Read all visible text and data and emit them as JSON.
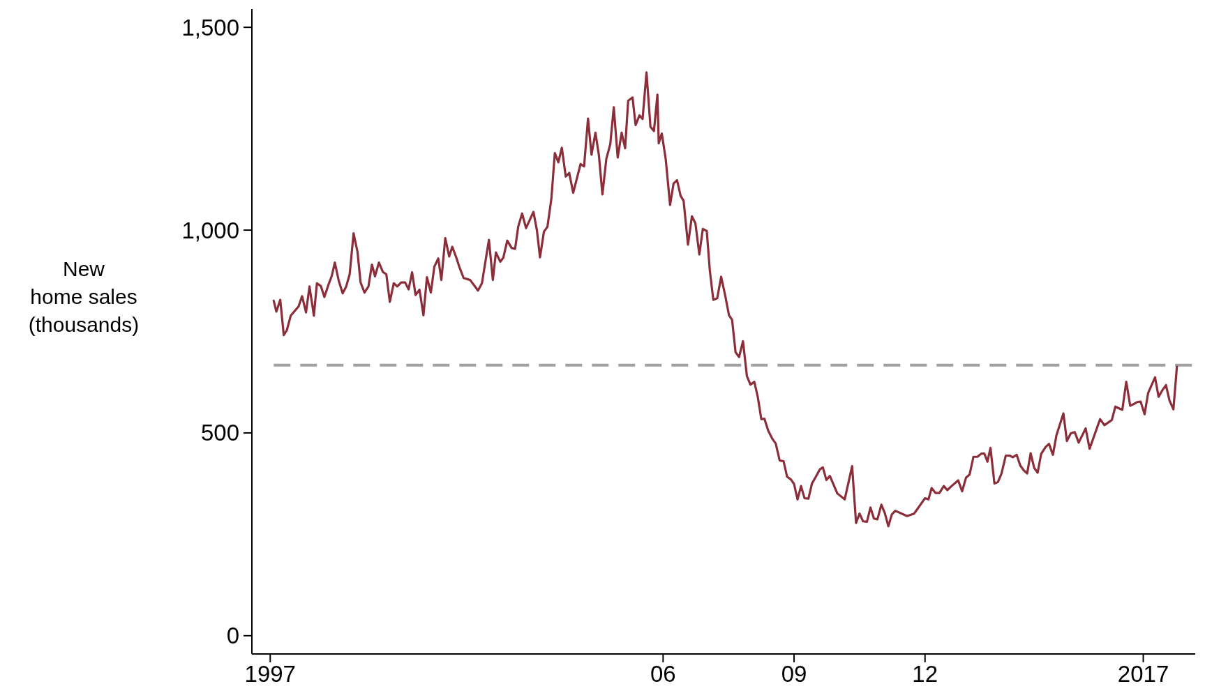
{
  "chart_data": {
    "type": "line",
    "ylabel": "New\nhome sales\n(thousands)",
    "xlim": [
      1996.58,
      2018.19
    ],
    "ylim": [
      -45,
      1545
    ],
    "xticks": [
      {
        "value": 1997,
        "label": "1997"
      },
      {
        "value": 2006,
        "label": "06"
      },
      {
        "value": 2009,
        "label": "09"
      },
      {
        "value": 2012,
        "label": "12"
      },
      {
        "value": 2017,
        "label": "2017"
      }
    ],
    "yticks": [
      0,
      {
        "value": 500,
        "label": "500"
      },
      {
        "value": 1000,
        "label": "1,000"
      },
      {
        "value": 1500,
        "label": "1,500"
      }
    ],
    "grid": false,
    "marker": "none",
    "line_style": "solid",
    "ref_lines": [
      {
        "axis": "y",
        "value": 667,
        "label": null,
        "color": "#a0a0a0",
        "line_style": "dashed"
      }
    ],
    "series": [
      {
        "color": "#8b2e3a",
        "x": [
          1997.08,
          1997.14,
          1997.23,
          1997.31,
          1997.38,
          1997.47,
          1997.65,
          1997.73,
          1997.82,
          1997.9,
          1998.0,
          1998.07,
          1998.16,
          1998.24,
          1998.33,
          1998.41,
          1998.48,
          1998.57,
          1998.66,
          1998.74,
          1998.82,
          1998.91,
          1999.0,
          1999.07,
          1999.16,
          1999.25,
          1999.33,
          1999.4,
          1999.49,
          1999.58,
          1999.66,
          1999.74,
          1999.83,
          1999.91,
          2000.0,
          2000.09,
          2000.17,
          2000.25,
          2000.33,
          2000.42,
          2000.51,
          2000.59,
          2000.68,
          2000.76,
          2000.85,
          2000.92,
          2001.01,
          2001.1,
          2001.17,
          2001.26,
          2001.34,
          2001.43,
          2001.58,
          2001.76,
          2001.85,
          2002.01,
          2002.1,
          2002.17,
          2002.27,
          2002.34,
          2002.43,
          2002.53,
          2002.61,
          2002.68,
          2002.77,
          2002.86,
          2003.03,
          2003.11,
          2003.18,
          2003.27,
          2003.35,
          2003.44,
          2003.52,
          2003.6,
          2003.68,
          2003.77,
          2003.85,
          2003.94,
          2004.11,
          2004.19,
          2004.28,
          2004.36,
          2004.45,
          2004.53,
          2004.61,
          2004.7,
          2004.79,
          2004.87,
          2004.96,
          2005.05,
          2005.13,
          2005.2,
          2005.3,
          2005.37,
          2005.46,
          2005.53,
          2005.62,
          2005.71,
          2005.79,
          2005.87,
          2005.9,
          2005.97,
          2006.06,
          2006.16,
          2006.24,
          2006.32,
          2006.4,
          2006.47,
          2006.57,
          2006.66,
          2006.74,
          2006.83,
          2006.91,
          2007.0,
          2007.07,
          2007.15,
          2007.24,
          2007.33,
          2007.42,
          2007.51,
          2007.58,
          2007.66,
          2007.74,
          2007.83,
          2007.92,
          2008.0,
          2008.09,
          2008.17,
          2008.25,
          2008.32,
          2008.41,
          2008.5,
          2008.58,
          2008.67,
          2008.76,
          2008.84,
          2008.93,
          2009.0,
          2009.08,
          2009.16,
          2009.24,
          2009.33,
          2009.41,
          2009.5,
          2009.59,
          2009.66,
          2009.74,
          2009.82,
          2009.99,
          2010.16,
          2010.33,
          2010.42,
          2010.5,
          2010.58,
          2010.67,
          2010.75,
          2010.83,
          2010.91,
          2011.0,
          2011.08,
          2011.16,
          2011.24,
          2011.32,
          2011.59,
          2011.75,
          2012.0,
          2012.08,
          2012.15,
          2012.24,
          2012.33,
          2012.43,
          2012.51,
          2012.61,
          2012.76,
          2012.85,
          2012.94,
          2013.02,
          2013.11,
          2013.2,
          2013.29,
          2013.36,
          2013.43,
          2013.5,
          2013.59,
          2013.67,
          2013.75,
          2013.85,
          2013.94,
          2014.01,
          2014.1,
          2014.18,
          2014.26,
          2014.34,
          2014.42,
          2014.5,
          2014.58,
          2014.66,
          2014.76,
          2014.84,
          2014.93,
          2015.01,
          2015.17,
          2015.25,
          2015.34,
          2015.43,
          2015.52,
          2015.68,
          2015.77,
          2016.01,
          2016.11,
          2016.28,
          2016.36,
          2016.45,
          2016.52,
          2016.61,
          2016.7,
          2016.78,
          2016.86,
          2016.94,
          2017.03,
          2017.11,
          2017.19,
          2017.27,
          2017.35,
          2017.43,
          2017.52,
          2017.6,
          2017.69,
          2017.77
        ],
        "values": [
          826,
          799,
          828,
          741,
          753,
          789,
          812,
          837,
          797,
          861,
          789,
          869,
          862,
          835,
          864,
          887,
          920,
          875,
          844,
          861,
          891,
          992,
          946,
          871,
          846,
          861,
          915,
          886,
          920,
          897,
          891,
          823,
          869,
          861,
          871,
          871,
          854,
          896,
          840,
          853,
          790,
          884,
          846,
          910,
          930,
          877,
          980,
          935,
          959,
          933,
          907,
          882,
          877,
          851,
          869,
          976,
          877,
          945,
          922,
          932,
          974,
          956,
          954,
          1008,
          1041,
          1005,
          1045,
          999,
          933,
          996,
          1008,
          1077,
          1190,
          1167,
          1203,
          1132,
          1141,
          1092,
          1163,
          1157,
          1275,
          1186,
          1240,
          1184,
          1088,
          1176,
          1212,
          1303,
          1179,
          1240,
          1202,
          1319,
          1327,
          1259,
          1283,
          1274,
          1389,
          1255,
          1244,
          1334,
          1214,
          1238,
          1175,
          1062,
          1115,
          1123,
          1085,
          1072,
          964,
          1034,
          1017,
          940,
          1003,
          998,
          901,
          828,
          832,
          885,
          840,
          790,
          779,
          699,
          687,
          726,
          640,
          619,
          626,
          588,
          534,
          535,
          505,
          486,
          474,
          432,
          430,
          392,
          385,
          374,
          336,
          369,
          339,
          338,
          375,
          392,
          410,
          415,
          384,
          394,
          351,
          336,
          418,
          278,
          301,
          282,
          281,
          316,
          289,
          287,
          323,
          302,
          270,
          299,
          308,
          295,
          301,
          339,
          336,
          364,
          352,
          352,
          369,
          359,
          369,
          383,
          356,
          390,
          397,
          441,
          441,
          449,
          449,
          429,
          463,
          375,
          379,
          399,
          444,
          444,
          440,
          446,
          420,
          408,
          400,
          450,
          414,
          402,
          448,
          465,
          473,
          446,
          494,
          548,
          480,
          499,
          502,
          476,
          511,
          461,
          534,
          519,
          532,
          565,
          560,
          557,
          626,
          567,
          571,
          576,
          577,
          546,
          598,
          618,
          637,
          589,
          604,
          618,
          580,
          558,
          663
        ]
      }
    ]
  }
}
